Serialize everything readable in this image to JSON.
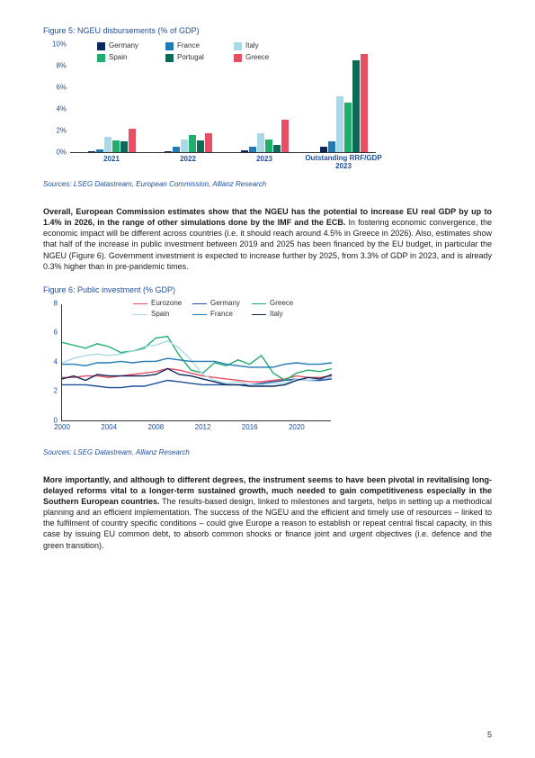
{
  "page_number": "5",
  "fig5": {
    "title": "Figure 5: NGEU disbursements (% of GDP)",
    "sources": "Sources: LSEG Datastream, European Commission, Allianz Research",
    "ymax": 10,
    "yticks": [
      "0%",
      "2%",
      "4%",
      "6%",
      "8%",
      "10%"
    ],
    "categories": [
      "2021",
      "2022",
      "2023",
      "Outstanding RRF/GDP 2023"
    ],
    "series": [
      {
        "name": "Germany",
        "color": "#0a2a5e",
        "values": [
          0.1,
          0.1,
          0.2,
          0.5
        ]
      },
      {
        "name": "France",
        "color": "#1f7ab5",
        "values": [
          0.3,
          0.5,
          0.5,
          1.0
        ]
      },
      {
        "name": "Italy",
        "color": "#a9d8e6",
        "values": [
          1.4,
          1.2,
          1.8,
          5.2
        ]
      },
      {
        "name": "Spain",
        "color": "#1fae6c",
        "values": [
          1.1,
          1.6,
          1.2,
          4.6
        ]
      },
      {
        "name": "Portugal",
        "color": "#0d6a56",
        "values": [
          1.0,
          1.1,
          0.7,
          8.5
        ]
      },
      {
        "name": "Greece",
        "color": "#e94f64",
        "values": [
          2.2,
          1.8,
          3.0,
          9.1
        ]
      }
    ]
  },
  "para1": {
    "bold": "Overall, European Commission estimates show that the NGEU has the potential to increase EU real GDP by up to 1.4% in 2026, in the range of other simulations done by the IMF and the ECB.",
    "rest": " In fostering economic convergence, the economic impact will be different across countries (i.e. it should reach around 4.5% in Greece in 2026). Also, estimates show that half of the increase in public investment between 2019 and 2025 has been financed by the EU budget, in particular the NGEU (Figure 6). Government investment is expected to increase further by 2025, from 3.3% of GDP in 2023, and is already 0.3% higher than in pre-pandemic times."
  },
  "fig6": {
    "title": "Figure 6: Public investment (% GDP)",
    "sources": "Sources: LSEG Datastream, Allianz Research",
    "ymax": 8,
    "yticks": [
      "0",
      "2",
      "4",
      "6",
      "8"
    ],
    "xticks": [
      "2000",
      "2004",
      "2008",
      "2012",
      "2016",
      "2020"
    ],
    "series": [
      {
        "name": "Eurozone",
        "color": "#e94f64",
        "values": [
          3.0,
          3.0,
          3.1,
          3.1,
          3.0,
          3.1,
          3.2,
          3.3,
          3.4,
          3.6,
          3.5,
          3.3,
          3.1,
          3.0,
          2.9,
          2.8,
          2.7,
          2.7,
          2.8,
          2.9,
          3.1,
          3.0,
          3.0,
          3.1
        ]
      },
      {
        "name": "Germany",
        "color": "#1f4e9c",
        "values": [
          2.5,
          2.5,
          2.5,
          2.4,
          2.3,
          2.3,
          2.4,
          2.4,
          2.6,
          2.8,
          2.7,
          2.6,
          2.5,
          2.5,
          2.5,
          2.5,
          2.5,
          2.6,
          2.7,
          2.8,
          2.9,
          2.8,
          2.8,
          2.9
        ]
      },
      {
        "name": "Greece",
        "color": "#1fae6c",
        "values": [
          5.4,
          5.2,
          5.0,
          5.3,
          5.1,
          4.7,
          4.8,
          5.0,
          5.7,
          5.8,
          4.5,
          3.5,
          3.3,
          4.0,
          3.8,
          4.2,
          3.9,
          4.5,
          3.3,
          2.8,
          3.3,
          3.5,
          3.4,
          3.6
        ]
      },
      {
        "name": "Spain",
        "color": "#a9d8e6",
        "values": [
          4.0,
          4.3,
          4.5,
          4.6,
          4.5,
          4.6,
          4.8,
          5.1,
          5.2,
          5.5,
          5.0,
          4.2,
          3.2,
          2.8,
          2.6,
          2.7,
          2.5,
          2.5,
          2.6,
          2.6,
          2.9,
          2.8,
          2.9,
          3.0
        ]
      },
      {
        "name": "France",
        "color": "#1f7ab5",
        "values": [
          3.9,
          3.9,
          3.8,
          4.0,
          4.0,
          4.1,
          4.0,
          4.1,
          4.1,
          4.3,
          4.2,
          4.1,
          4.1,
          4.1,
          3.9,
          3.8,
          3.7,
          3.7,
          3.7,
          3.9,
          4.0,
          3.9,
          3.9,
          4.0
        ]
      },
      {
        "name": "Italy",
        "color": "#0a2a5e",
        "values": [
          2.9,
          3.1,
          2.8,
          3.2,
          3.1,
          3.1,
          3.1,
          3.1,
          3.2,
          3.6,
          3.2,
          3.1,
          2.9,
          2.7,
          2.5,
          2.5,
          2.4,
          2.4,
          2.4,
          2.5,
          2.8,
          3.0,
          2.9,
          3.2
        ]
      }
    ]
  },
  "para2": {
    "bold": "More importantly, and although to different degrees, the instrument seems to have been pivotal in revitalising long-delayed reforms vital to a longer-term sustained growth, much needed to gain competitiveness especially in the Southern European countries.",
    "rest": " The results-based design, linked to milestones and targets, helps in setting up a methodical planning and an efficient implementation. The success of the NGEU and the efficient and timely use of resources – linked to the fulfilment of country specific conditions – could give Europe a reason to establish or repeat central fiscal capacity, in this case by issuing EU common debt, to absorb common shocks or finance joint and urgent objectives (i.e. defence and the green transition)."
  }
}
